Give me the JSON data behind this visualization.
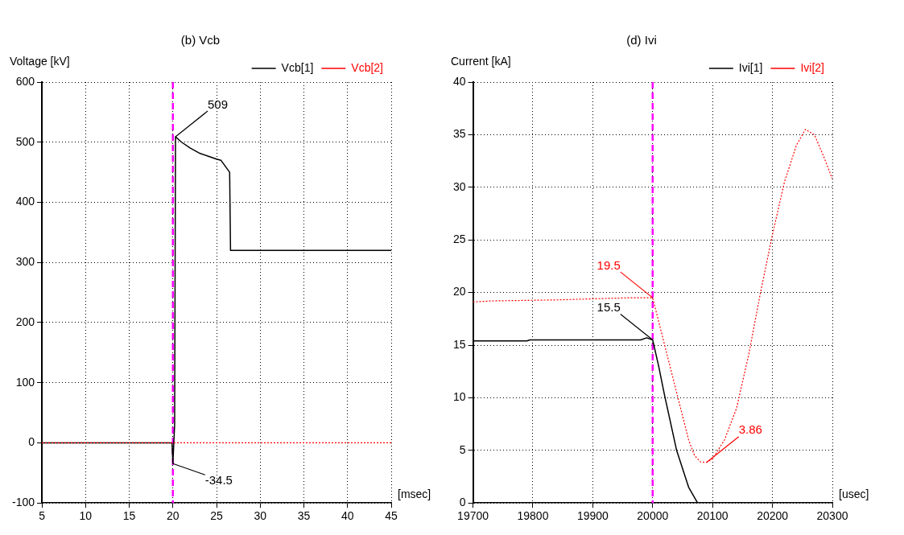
{
  "chart_data": [
    {
      "type": "line",
      "title": "(b) Vcb",
      "ylabel": "Voltage [kV]",
      "xlabel": "[msec]",
      "xlim": [
        5,
        45
      ],
      "xticks": [
        5,
        10,
        15,
        20,
        25,
        30,
        35,
        40,
        45
      ],
      "ylim": [
        -100,
        600
      ],
      "yticks": [
        -100,
        0,
        100,
        200,
        300,
        400,
        500,
        600
      ],
      "grid": true,
      "legend": "top right",
      "marker": "none",
      "series": [
        {
          "name": "Vcb[1]",
          "color": "#000000",
          "line_style": "solid",
          "x": [
            5,
            19.9,
            20,
            20.2,
            20.3,
            21,
            22,
            23,
            24,
            25,
            25.5,
            26,
            26.5,
            26.6,
            45
          ],
          "values": [
            0,
            0,
            -34.5,
            30,
            509,
            500,
            490,
            482,
            477,
            472,
            470,
            460,
            450,
            320,
            320
          ]
        },
        {
          "name": "Vcb[2]",
          "color": "#ff0000",
          "line_style": "dotted",
          "x": [
            5,
            45
          ],
          "values": [
            0,
            0
          ]
        }
      ],
      "ref_lines": [
        {
          "axis": "x",
          "value": 20,
          "color": "#ff00ff",
          "line_style": "dashed"
        }
      ],
      "annotations": [
        {
          "text": "509",
          "x": 20.3,
          "y": 509
        },
        {
          "text": "-34.5",
          "x": 20,
          "y": -34.5
        }
      ]
    },
    {
      "type": "line",
      "title": "(d) Ivi",
      "ylabel": "Current [kA]",
      "xlabel": "[usec]",
      "xlim": [
        19700,
        20300
      ],
      "xticks": [
        19700,
        19800,
        19900,
        20000,
        20100,
        20200,
        20300
      ],
      "ylim": [
        0,
        40
      ],
      "yticks": [
        0,
        5,
        10,
        15,
        20,
        25,
        30,
        35,
        40
      ],
      "grid": true,
      "legend": "top right",
      "marker": "none",
      "series": [
        {
          "name": "Ivi[1]",
          "color": "#000000",
          "line_style": "solid",
          "x": [
            19700,
            19790,
            19795,
            19980,
            19990,
            20000,
            20010,
            20020,
            20040,
            20060,
            20075
          ],
          "values": [
            15.4,
            15.4,
            15.5,
            15.5,
            15.7,
            15.5,
            13,
            10.2,
            5,
            1.5,
            0
          ]
        },
        {
          "name": "Ivi[2]",
          "color": "#ff0000",
          "line_style": "dotted",
          "x": [
            19700,
            19730,
            19840,
            19960,
            19995,
            20000,
            20020,
            20040,
            20060,
            20070,
            20080,
            20090,
            20100,
            20120,
            20140,
            20160,
            20180,
            20200,
            20220,
            20240,
            20255,
            20270,
            20285,
            20300
          ],
          "values": [
            19.1,
            19.2,
            19.3,
            19.5,
            19.5,
            19.5,
            15,
            10.5,
            6,
            4.5,
            3.9,
            3.86,
            4.2,
            6,
            9,
            14,
            20,
            25.5,
            30.5,
            34,
            35.5,
            35,
            33,
            30.8
          ]
        }
      ],
      "ref_lines": [
        {
          "axis": "x",
          "value": 20000,
          "color": "#ff00ff",
          "line_style": "dashed"
        }
      ],
      "annotations": [
        {
          "text": "15.5",
          "x": 20000,
          "y": 15.5
        },
        {
          "text": "19.5",
          "x": 20000,
          "y": 19.5
        },
        {
          "text": "3.86",
          "x": 20090,
          "y": 3.86
        }
      ]
    }
  ]
}
